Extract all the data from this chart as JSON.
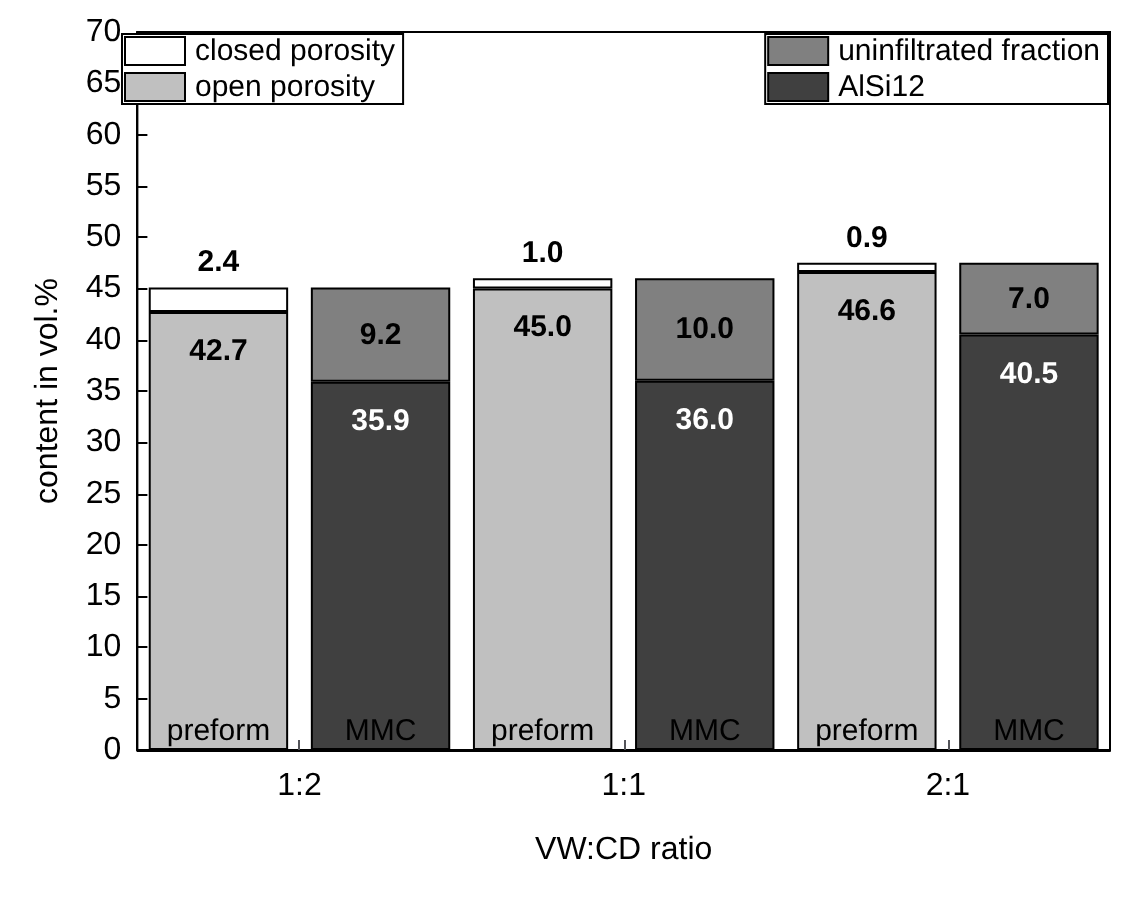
{
  "chart_data": {
    "type": "bar",
    "stacked": true,
    "xlabel": "VW:CD ratio",
    "ylabel": "content in vol.%",
    "categories": [
      "preform",
      "MMC",
      "preform",
      "MMC",
      "preform",
      "MMC"
    ],
    "annotations": [
      "1:2",
      "1:1",
      "2:1"
    ],
    "series": [
      {
        "name": "open porosity",
        "color": "#c0c0c0",
        "values": [
          42.7,
          null,
          45.0,
          null,
          46.6,
          null
        ],
        "value_labels": [
          "42.7",
          null,
          "45.0",
          null,
          "46.6",
          null
        ]
      },
      {
        "name": "closed porosity",
        "color": "#ffffff",
        "values": [
          2.4,
          null,
          1.0,
          null,
          0.9,
          null
        ],
        "value_labels": [
          "2.4",
          null,
          "1.0",
          null,
          "0.9",
          null
        ]
      },
      {
        "name": "AlSi12",
        "color": "#404040",
        "values": [
          null,
          35.9,
          null,
          36.0,
          null,
          40.5
        ],
        "value_labels": [
          null,
          "35.9",
          null,
          "36.0",
          null,
          "40.5"
        ]
      },
      {
        "name": "uninfiltrated fraction",
        "color": "#808080",
        "values": [
          null,
          9.2,
          null,
          10.0,
          null,
          7.0
        ],
        "value_labels": [
          null,
          "9.2",
          null,
          "10.0",
          null,
          "7.0"
        ]
      }
    ],
    "ylim": [
      0,
      70
    ],
    "yticks": [
      0,
      5,
      10,
      15,
      20,
      25,
      30,
      35,
      40,
      45,
      50,
      55,
      60,
      65,
      70
    ],
    "legend": "top",
    "grid": false
  }
}
